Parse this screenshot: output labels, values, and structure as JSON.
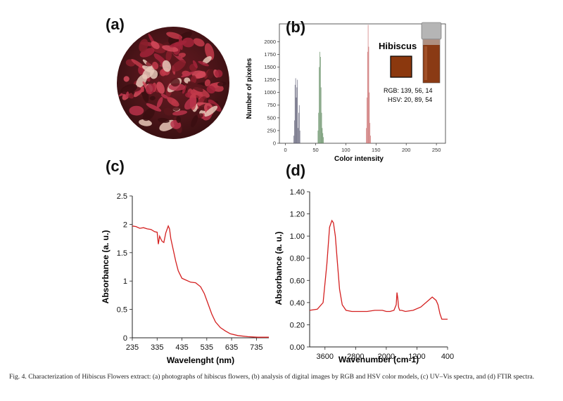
{
  "panels": {
    "a": {
      "label": "(a)"
    },
    "b": {
      "label": "(b)",
      "legend_title": "Hibiscus",
      "swatch_color": "#8b380e",
      "rgb_text": "RGB: 139, 56, 14",
      "hsv_text": "HSV: 20, 89, 54"
    },
    "c": {
      "label": "(c)"
    },
    "d": {
      "label": "(d)"
    }
  },
  "caption": {
    "fig_label": "Fig. 4.",
    "text": "Characterization of Hibiscus Flowers extract: (a) photographs of hibiscus flowers, (b) analysis of digital images by RGB and HSV color models, (c) UV–Vis spectra, and (d) FTIR spectra."
  },
  "chart_data": [
    {
      "type": "bar",
      "panel": "b",
      "xlabel": "Color intensity",
      "ylabel": "Number of pixeles",
      "xlim": [
        -10,
        265
      ],
      "ylim": [
        0,
        2350
      ],
      "xticks": [
        0,
        50,
        100,
        150,
        200,
        250
      ],
      "yticks": [
        0,
        250,
        500,
        750,
        1000,
        1250,
        1500,
        1750,
        2000
      ],
      "series": [
        {
          "color": "#5a5a72",
          "x": [
            14,
            15,
            16,
            17,
            18,
            19,
            20,
            21,
            22,
            23,
            24
          ],
          "values": [
            150,
            450,
            1150,
            1280,
            900,
            1100,
            1250,
            300,
            600,
            750,
            250
          ]
        },
        {
          "color": "#5e8a5e",
          "x": [
            54,
            55,
            56,
            57,
            58,
            59,
            60,
            61,
            62,
            63
          ],
          "values": [
            250,
            600,
            1500,
            1800,
            1700,
            1100,
            600,
            300,
            200,
            120
          ]
        },
        {
          "color": "#c96a6a",
          "x": [
            134,
            135,
            136,
            137,
            138,
            139,
            140,
            141
          ],
          "values": [
            300,
            900,
            1800,
            2330,
            1900,
            1000,
            400,
            150
          ]
        }
      ]
    },
    {
      "type": "line",
      "panel": "c",
      "xlabel": "Wavelenght (nm)",
      "ylabel": "Absorbance (a. u.)",
      "xlim": [
        235,
        785
      ],
      "ylim": [
        0,
        2.5
      ],
      "xticks": [
        235,
        335,
        435,
        535,
        635,
        735
      ],
      "yticks": [
        "0",
        "0.5",
        "1",
        "1.5",
        "2",
        "2.5"
      ],
      "color": "#d42020",
      "x": [
        235,
        250,
        265,
        280,
        295,
        310,
        325,
        335,
        340,
        345,
        350,
        355,
        362,
        370,
        380,
        385,
        390,
        400,
        410,
        420,
        435,
        450,
        470,
        490,
        510,
        525,
        540,
        555,
        570,
        590,
        610,
        630,
        660,
        700,
        740,
        785
      ],
      "y": [
        1.97,
        1.96,
        1.93,
        1.94,
        1.92,
        1.91,
        1.87,
        1.86,
        1.65,
        1.79,
        1.74,
        1.7,
        1.68,
        1.85,
        1.97,
        1.92,
        1.75,
        1.55,
        1.35,
        1.18,
        1.05,
        1.02,
        0.98,
        0.97,
        0.9,
        0.78,
        0.6,
        0.42,
        0.28,
        0.18,
        0.12,
        0.07,
        0.04,
        0.02,
        0.01,
        0.01
      ]
    },
    {
      "type": "line",
      "panel": "d",
      "xlabel": "Wavenumber (cm-1)",
      "ylabel": "Absorbance (a. u.)",
      "xlim": [
        4000,
        400
      ],
      "ylim": [
        0.0,
        1.4
      ],
      "xticks": [
        "3600",
        "2800",
        "2000",
        "1200",
        "400"
      ],
      "yticks": [
        "0.00",
        "0.20",
        "0.40",
        "0.60",
        "0.80",
        "1.00",
        "1.20",
        "1.40"
      ],
      "color": "#d42020",
      "x": [
        4000,
        3800,
        3650,
        3550,
        3480,
        3420,
        3380,
        3330,
        3280,
        3220,
        3150,
        3050,
        2900,
        2700,
        2500,
        2300,
        2100,
        2000,
        1900,
        1800,
        1740,
        1720,
        1700,
        1680,
        1650,
        1600,
        1500,
        1300,
        1100,
        900,
        800,
        700,
        650,
        600,
        550,
        500,
        450,
        400
      ],
      "y": [
        0.33,
        0.34,
        0.4,
        0.75,
        1.08,
        1.14,
        1.12,
        1.0,
        0.78,
        0.52,
        0.38,
        0.33,
        0.32,
        0.32,
        0.32,
        0.33,
        0.33,
        0.32,
        0.32,
        0.33,
        0.38,
        0.49,
        0.44,
        0.36,
        0.33,
        0.33,
        0.32,
        0.33,
        0.36,
        0.42,
        0.45,
        0.42,
        0.38,
        0.3,
        0.25,
        0.25,
        0.25,
        0.25
      ]
    }
  ]
}
